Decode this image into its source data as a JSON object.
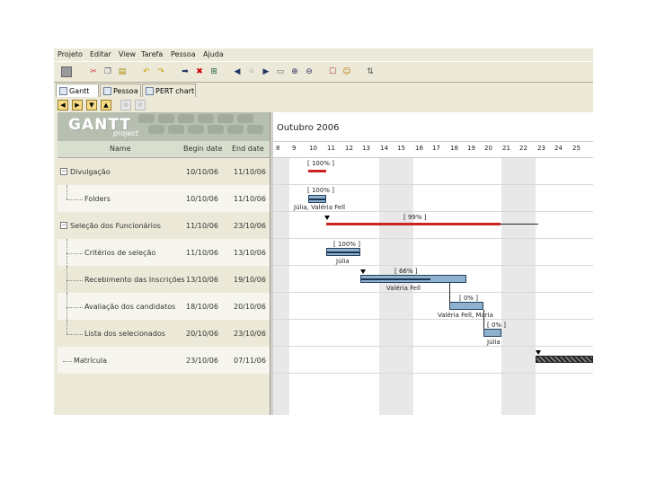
{
  "menu": [
    "Projeto",
    "Editar",
    "View",
    "Tarefa",
    "Pessoa",
    "Ajuda"
  ],
  "toolbar_icons": [
    "new-icon",
    "cut-icon",
    "copy-icon",
    "paste-icon",
    "undo-icon",
    "redo-icon",
    "indent-icon",
    "delete-icon",
    "link-icon",
    "unlink-icon",
    "prev-icon",
    "next-icon",
    "collapse-icon",
    "zoom-in-icon",
    "zoom-out-icon",
    "properties-icon",
    "assign-icon",
    "refresh-icon"
  ],
  "tabs": [
    {
      "label": "Gantt",
      "active": true
    },
    {
      "label": "Pessoa",
      "active": false
    },
    {
      "label": "PERT chart",
      "active": false
    }
  ],
  "logo": {
    "word": "GANTT",
    "sub": "project"
  },
  "columns": {
    "name": "Name",
    "begin": "Begin date",
    "end": "End date"
  },
  "tasks": [
    {
      "name": "Divulgação",
      "begin": "10/10/06",
      "end": "11/10/06",
      "level": 0
    },
    {
      "name": "Folders",
      "begin": "10/10/06",
      "end": "11/10/06",
      "level": 1
    },
    {
      "name": "Seleção dos Funcionários",
      "begin": "11/10/06",
      "end": "23/10/06",
      "level": 0
    },
    {
      "name": "Critérios de seleção",
      "begin": "11/10/06",
      "end": "13/10/06",
      "level": 1
    },
    {
      "name": "Recebimento das Inscrições",
      "begin": "13/10/06",
      "end": "19/10/06",
      "level": 1
    },
    {
      "name": "Avaliação dos candidatos",
      "begin": "18/10/06",
      "end": "20/10/06",
      "level": 1
    },
    {
      "name": "Lista dos selecionados",
      "begin": "20/10/06",
      "end": "23/10/06",
      "level": 1
    },
    {
      "name": "Matrícula",
      "begin": "23/10/06",
      "end": "07/11/06",
      "level": 0
    }
  ],
  "chart": {
    "month": "Outubro 2006",
    "days": [
      "8",
      "9",
      "10",
      "11",
      "12",
      "13",
      "14",
      "15",
      "16",
      "17",
      "18",
      "19",
      "20",
      "21",
      "22",
      "23",
      "24",
      "25"
    ],
    "percent_labels": [
      "[ 100% ]",
      "[ 100% ]",
      "[ 99% ]",
      "[ 100% ]",
      "[ 66% ]",
      "[ 0% ]",
      "[ 0% ]"
    ],
    "resources": [
      "Júlia, Valéria Fell",
      "Júlia",
      "Valéria Fell",
      "Valéria Fell, Maria",
      "Júlia"
    ]
  }
}
